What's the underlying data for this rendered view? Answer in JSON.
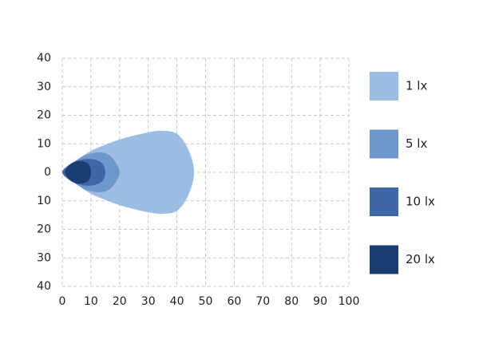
{
  "chart_data": {
    "type": "area",
    "xlim": [
      0,
      100
    ],
    "xticks": [
      0,
      10,
      20,
      30,
      40,
      50,
      60,
      70,
      80,
      90,
      100
    ],
    "ylim": [
      -40,
      40
    ],
    "yticks": [
      {
        "value": -40,
        "label": "40"
      },
      {
        "value": -30,
        "label": "30"
      },
      {
        "value": -20,
        "label": "20"
      },
      {
        "value": -10,
        "label": "10"
      },
      0,
      10,
      20,
      30,
      40
    ],
    "grid": true,
    "legend": "right",
    "series": [
      {
        "name": "1 lx",
        "color": "#9bbde4",
        "x": [
          0,
          5,
          10,
          20,
          30,
          35,
          40,
          44,
          46,
          44,
          40,
          35,
          30,
          20,
          10,
          5
        ],
        "y": [
          0,
          4,
          7.5,
          11.5,
          14,
          14.5,
          13.5,
          8,
          0,
          -8,
          -13.5,
          -14.5,
          -14,
          -11.5,
          -7.5,
          -4
        ]
      },
      {
        "name": "5 lx",
        "color": "#6e98cb",
        "x": [
          0,
          4,
          8,
          13,
          17,
          20,
          17,
          13,
          8,
          4
        ],
        "y": [
          0,
          3.5,
          6,
          7,
          5.5,
          0,
          -5.5,
          -7,
          -6,
          -3.5
        ]
      },
      {
        "name": "10 lx",
        "color": "#3d67a6",
        "x": [
          0,
          3,
          7,
          11,
          14,
          15,
          14,
          11,
          7,
          3
        ],
        "y": [
          0,
          3,
          4.5,
          4.5,
          3,
          0,
          -3,
          -4.5,
          -4.5,
          -3
        ]
      },
      {
        "name": "20 lx",
        "color": "#1a3d73",
        "x": [
          1,
          3,
          6,
          9,
          10,
          9,
          6,
          3
        ],
        "y": [
          0,
          3,
          4,
          3,
          0,
          -3,
          -4,
          -3
        ]
      }
    ]
  }
}
